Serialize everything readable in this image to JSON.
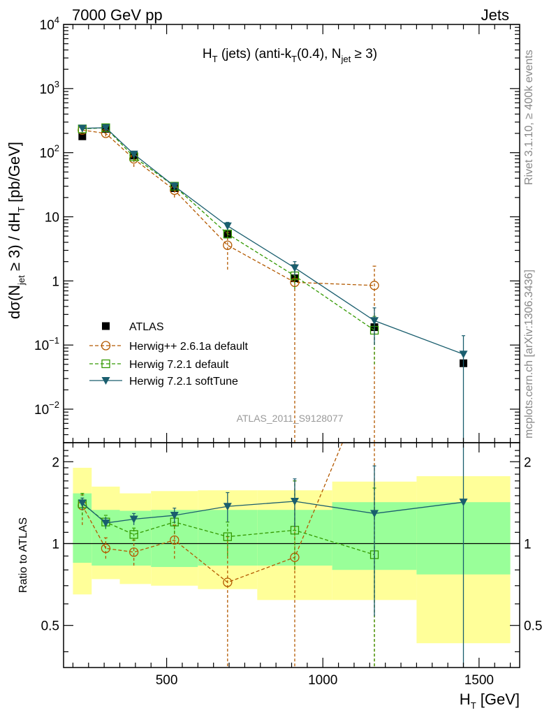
{
  "header": {
    "left": "7000 GeV pp",
    "right": "Jets"
  },
  "side_labels": {
    "top": "Rivet 3.1.10, ≥ 400k events",
    "bottom": "mcplots.cern.ch [arXiv:1306.3436]"
  },
  "watermark": "ATLAS_2011_S9128077",
  "colors": {
    "atlas": "#000000",
    "herwigpp": "#b35900",
    "herwig721": "#339900",
    "softtune": "#1a5e6e",
    "band_inner": "#99ff99",
    "band_outer": "#ffff99"
  },
  "chart_data": [
    {
      "type": "line",
      "panel": "main",
      "title": "H_T (jets) (anti-k_T(0.4), N_jet ≥ 3)",
      "title_parts": {
        "a": "H",
        "a_sub": "T",
        "b": " (jets) (anti-k",
        "b_sub": "T",
        "c": "(0.4), N",
        "c_sub": "jet",
        "d": " ≥ 3)"
      },
      "ylabel": "dσ(N_jet ≥ 3) / dH_T [pb/GeV]",
      "ylabel_parts": {
        "a": "dσ(N",
        "a_sub": "jet",
        "b": " ≥ 3) / dH",
        "b_sub": "T",
        "c": " [pb/GeV]"
      },
      "xlim": [
        170,
        1630
      ],
      "ylim": [
        0.003,
        10000
      ],
      "yscale": "log",
      "y_ticks": [
        {
          "v": 0.01,
          "base": "10",
          "exp": "−2"
        },
        {
          "v": 0.1,
          "base": "10",
          "exp": "−1"
        },
        {
          "v": 1,
          "base": "1",
          "exp": ""
        },
        {
          "v": 10,
          "base": "10",
          "exp": ""
        },
        {
          "v": 100,
          "base": "10",
          "exp": "2"
        },
        {
          "v": 1000,
          "base": "10",
          "exp": "3"
        },
        {
          "v": 10000,
          "base": "10",
          "exp": "4"
        }
      ],
      "legend": {
        "position": "lower-left",
        "entries": [
          "ATLAS",
          "Herwig++ 2.6.1a default",
          "Herwig 7.2.1 default",
          "Herwig 7.2.1 softTune"
        ]
      },
      "series": [
        {
          "name": "ATLAS",
          "key": "atlas",
          "marker": "square-filled",
          "x": [
            230,
            305,
            395,
            525,
            695,
            910,
            1165,
            1450
          ],
          "y": [
            180,
            235,
            90,
            28,
            5.3,
            1.1,
            0.19,
            0.052
          ]
        },
        {
          "name": "Herwig++ 2.6.1a default",
          "key": "herwigpp",
          "marker": "circle-open",
          "dash": true,
          "x": [
            230,
            305,
            395,
            525,
            695,
            910,
            1165
          ],
          "y": [
            225,
            200,
            80,
            26,
            3.6,
            0.95,
            0.85
          ],
          "yerr_lo": [
            200,
            180,
            60,
            20,
            1.5,
            0.003,
            0.003
          ],
          "yerr_hi": [
            250,
            220,
            100,
            32,
            5.7,
            1.8,
            1.7
          ]
        },
        {
          "name": "Herwig 7.2.1 default",
          "key": "herwig721",
          "marker": "square-open",
          "dash": true,
          "x": [
            230,
            305,
            395,
            525,
            695,
            910,
            1165
          ],
          "y": [
            235,
            245,
            86,
            30,
            5.4,
            1.2,
            0.17
          ],
          "yerr_lo": [
            215,
            225,
            76,
            26,
            4.6,
            0.75,
            0.05
          ],
          "yerr_hi": [
            255,
            265,
            96,
            34,
            6.2,
            1.7,
            0.28
          ]
        },
        {
          "name": "Herwig 7.2.1 softTune",
          "key": "softtune",
          "marker": "triangle-down",
          "dash": false,
          "x": [
            230,
            305,
            395,
            525,
            695,
            910,
            1165,
            1450
          ],
          "y": [
            240,
            245,
            95,
            30,
            7.2,
            1.6,
            0.24,
            0.072
          ],
          "yerr_lo": [
            220,
            225,
            85,
            26,
            6.2,
            1.2,
            0.1,
            0.003
          ],
          "yerr_hi": [
            260,
            265,
            105,
            34,
            8.2,
            2.0,
            0.38,
            0.14
          ]
        }
      ]
    },
    {
      "type": "line",
      "panel": "ratio",
      "ylabel": "Ratio to ATLAS",
      "xlabel": "H_T [GeV]",
      "xlabel_parts": {
        "a": "H",
        "a_sub": "T",
        "b": " [GeV]"
      },
      "xlim": [
        170,
        1630
      ],
      "ylim": [
        0.35,
        2.35
      ],
      "yscale": "log",
      "y_ticks": [
        "0.5",
        "1",
        "2"
      ],
      "x_ticks": [
        "500",
        "1000",
        "1500"
      ],
      "bands": {
        "edges": [
          200,
          260,
          350,
          450,
          600,
          790,
          1030,
          1300,
          1600
        ],
        "inner_lo": [
          0.85,
          0.83,
          0.83,
          0.82,
          0.83,
          0.83,
          0.8,
          0.77
        ],
        "inner_hi": [
          1.53,
          1.33,
          1.32,
          1.33,
          1.33,
          1.33,
          1.42,
          1.42
        ],
        "outer_lo": [
          0.65,
          0.74,
          0.71,
          0.7,
          0.68,
          0.62,
          0.62,
          0.43
        ],
        "outer_hi": [
          1.9,
          1.62,
          1.53,
          1.56,
          1.57,
          1.57,
          1.69,
          1.77
        ]
      },
      "series": [
        {
          "name": "Herwig++ 2.6.1a default",
          "key": "herwigpp",
          "marker": "circle-open",
          "dash": true,
          "x": [
            230,
            305,
            395,
            525,
            695,
            910,
            1165
          ],
          "y": [
            1.38,
            0.96,
            0.93,
            1.03,
            0.72,
            0.89,
            4.5
          ],
          "yerr_lo": [
            1.17,
            0.88,
            0.83,
            0.88,
            0.3,
            0.003,
            0.003
          ],
          "yerr_hi": [
            1.51,
            1.05,
            1.03,
            1.17,
            1.06,
            1.7,
            5.0
          ]
        },
        {
          "name": "Herwig 7.2.1 default",
          "key": "herwig721",
          "marker": "square-open",
          "dash": true,
          "x": [
            230,
            305,
            395,
            525,
            695,
            910,
            1165
          ],
          "y": [
            1.4,
            1.2,
            1.08,
            1.2,
            1.06,
            1.12,
            0.91
          ],
          "yerr_lo": [
            1.27,
            1.13,
            1.02,
            1.09,
            0.9,
            0.8,
            0.3
          ],
          "yerr_hi": [
            1.53,
            1.27,
            1.14,
            1.29,
            1.2,
            1.7,
            1.6
          ]
        },
        {
          "name": "Herwig 7.2.1 softTune",
          "key": "softtune",
          "marker": "triangle-down",
          "dash": false,
          "x": [
            230,
            305,
            395,
            525,
            695,
            910,
            1165,
            1450
          ],
          "y": [
            1.41,
            1.19,
            1.23,
            1.27,
            1.37,
            1.43,
            1.29,
            1.42
          ],
          "yerr_lo": [
            1.33,
            1.14,
            1.17,
            1.19,
            1.2,
            1.15,
            0.54,
            0.003
          ],
          "yerr_hi": [
            1.47,
            1.24,
            1.29,
            1.35,
            1.54,
            1.73,
            1.93,
            2.8
          ]
        }
      ]
    }
  ]
}
